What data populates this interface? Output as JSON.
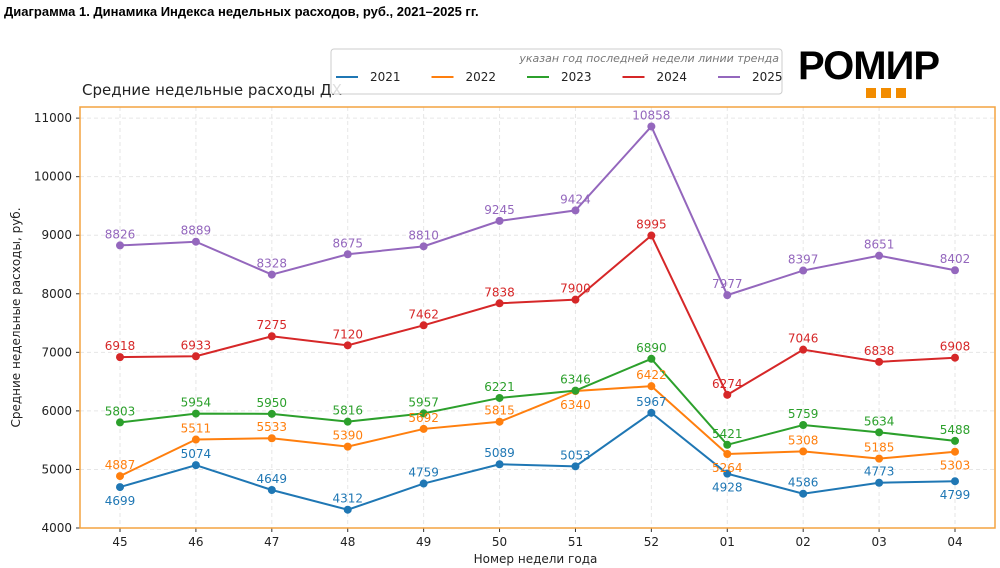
{
  "figure_title": "Диаграмма 1. Динамика Индекса недельных расходов, руб., 2021–2025 гг.",
  "logo": {
    "text": "РОМИР",
    "accent": "#f28c00"
  },
  "chart_data": {
    "type": "line",
    "title": "Средние недельные расходы ДХ",
    "xlabel": "Номер недели года",
    "ylabel": "Средние недельные расходы, руб.",
    "legend_title": "указан год последней недели линии тренда",
    "legend_placement": "top",
    "grid": true,
    "ylim": [
      4000,
      11190
    ],
    "yticks": [
      4000,
      5000,
      6000,
      7000,
      8000,
      9000,
      10000,
      11000
    ],
    "categories": [
      "45",
      "46",
      "47",
      "48",
      "49",
      "50",
      "51",
      "52",
      "01",
      "02",
      "03",
      "04"
    ],
    "series": [
      {
        "name": "2021",
        "color": "#1f77b4",
        "values": [
          4699,
          5074,
          4649,
          4312,
          4759,
          5089,
          5053,
          5967,
          4928,
          4586,
          4773,
          4799
        ]
      },
      {
        "name": "2022",
        "color": "#ff7f0e",
        "values": [
          4887,
          5511,
          5533,
          5390,
          5692,
          5815,
          6340,
          6422,
          5264,
          5308,
          5185,
          5303
        ]
      },
      {
        "name": "2023",
        "color": "#2ca02c",
        "values": [
          5803,
          5954,
          5950,
          5816,
          5957,
          6221,
          6346,
          6890,
          5421,
          5759,
          5634,
          5488
        ]
      },
      {
        "name": "2024",
        "color": "#d62728",
        "values": [
          6918,
          6933,
          7275,
          7120,
          7462,
          7838,
          7900,
          8995,
          6274,
          7046,
          6838,
          6908
        ]
      },
      {
        "name": "2025",
        "color": "#9467bd",
        "values": [
          8826,
          8889,
          8328,
          8675,
          8810,
          9245,
          9424,
          10858,
          7977,
          8397,
          8651,
          8402
        ]
      }
    ]
  }
}
